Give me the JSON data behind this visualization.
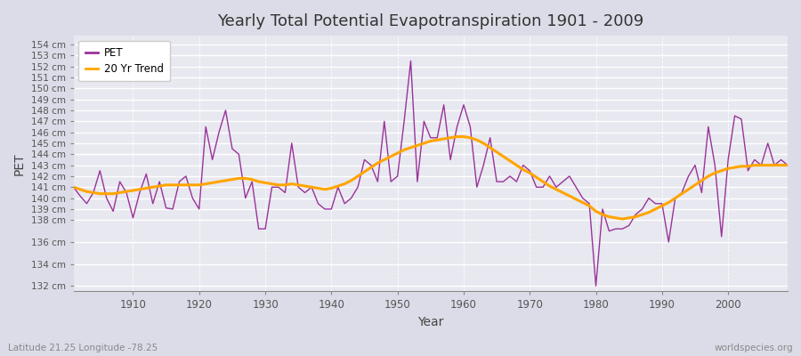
{
  "title": "Yearly Total Potential Evapotranspiration 1901 - 2009",
  "xlabel": "Year",
  "ylabel": "PET",
  "bottom_left_label": "Latitude 21.25 Longitude -78.25",
  "bottom_right_label": "worldspecies.org",
  "pet_color": "#993399",
  "trend_color": "#FFA500",
  "background_color": "#DCDCE8",
  "plot_bg_color": "#E8E8F0",
  "ylim": [
    131.5,
    154.8
  ],
  "xlim": [
    1901,
    2009
  ],
  "yticks": [
    132,
    134,
    136,
    138,
    139,
    140,
    141,
    142,
    143,
    144,
    145,
    146,
    147,
    148,
    149,
    150,
    151,
    152,
    153,
    154
  ],
  "xticks": [
    1910,
    1920,
    1930,
    1940,
    1950,
    1960,
    1970,
    1980,
    1990,
    2000
  ],
  "years": [
    1901,
    1902,
    1903,
    1904,
    1905,
    1906,
    1907,
    1908,
    1909,
    1910,
    1911,
    1912,
    1913,
    1914,
    1915,
    1916,
    1917,
    1918,
    1919,
    1920,
    1921,
    1922,
    1923,
    1924,
    1925,
    1926,
    1927,
    1928,
    1929,
    1930,
    1931,
    1932,
    1933,
    1934,
    1935,
    1936,
    1937,
    1938,
    1939,
    1940,
    1941,
    1942,
    1943,
    1944,
    1945,
    1946,
    1947,
    1948,
    1949,
    1950,
    1951,
    1952,
    1953,
    1954,
    1955,
    1956,
    1957,
    1958,
    1959,
    1960,
    1961,
    1962,
    1963,
    1964,
    1965,
    1966,
    1967,
    1968,
    1969,
    1970,
    1971,
    1972,
    1973,
    1974,
    1975,
    1976,
    1977,
    1978,
    1979,
    1980,
    1981,
    1982,
    1983,
    1984,
    1985,
    1986,
    1987,
    1988,
    1989,
    1990,
    1991,
    1992,
    1993,
    1994,
    1995,
    1996,
    1997,
    1998,
    1999,
    2000,
    2001,
    2002,
    2003,
    2004,
    2005,
    2006,
    2007,
    2008,
    2009
  ],
  "pet_values": [
    141.0,
    140.2,
    139.5,
    140.5,
    142.5,
    140.0,
    138.8,
    141.5,
    140.5,
    138.2,
    140.5,
    142.2,
    139.5,
    141.5,
    139.1,
    139.0,
    141.5,
    142.0,
    140.0,
    139.0,
    146.5,
    143.5,
    146.0,
    148.0,
    144.5,
    144.0,
    140.0,
    141.5,
    137.2,
    137.2,
    141.0,
    141.0,
    140.5,
    145.0,
    141.0,
    140.5,
    141.0,
    139.5,
    139.0,
    139.0,
    141.0,
    139.5,
    140.0,
    141.0,
    143.5,
    143.0,
    141.5,
    147.0,
    141.5,
    142.0,
    147.0,
    152.5,
    141.5,
    147.0,
    145.5,
    145.5,
    148.5,
    143.5,
    146.5,
    148.5,
    146.5,
    141.0,
    143.0,
    145.5,
    141.5,
    141.5,
    142.0,
    141.5,
    143.0,
    142.5,
    141.0,
    141.0,
    142.0,
    141.0,
    141.5,
    142.0,
    141.0,
    140.0,
    139.5,
    132.0,
    139.0,
    137.0,
    137.2,
    137.2,
    137.5,
    138.5,
    139.0,
    140.0,
    139.5,
    139.5,
    136.0,
    140.0,
    140.5,
    142.0,
    143.0,
    140.5,
    146.5,
    143.0,
    136.5,
    143.5,
    147.5,
    147.2,
    142.5,
    143.5,
    143.0,
    145.0,
    143.0,
    143.5,
    143.0
  ],
  "trend_years": [
    1901,
    1902,
    1903,
    1904,
    1905,
    1906,
    1907,
    1908,
    1909,
    1910,
    1911,
    1912,
    1913,
    1914,
    1915,
    1916,
    1917,
    1918,
    1919,
    1920,
    1921,
    1922,
    1923,
    1924,
    1925,
    1926,
    1927,
    1928,
    1929,
    1930,
    1931,
    1932,
    1933,
    1934,
    1935,
    1936,
    1937,
    1938,
    1939,
    1940,
    1941,
    1942,
    1943,
    1944,
    1945,
    1946,
    1947,
    1948,
    1949,
    1950,
    1951,
    1952,
    1953,
    1954,
    1955,
    1956,
    1957,
    1958,
    1959,
    1960,
    1961,
    1962,
    1963,
    1964,
    1965,
    1966,
    1967,
    1968,
    1969,
    1970,
    1971,
    1972,
    1973,
    1974,
    1975,
    1976,
    1977,
    1978,
    1979,
    1980,
    1981,
    1982,
    1983,
    1984,
    1985,
    1986,
    1987,
    1988,
    1989,
    1990,
    1991,
    1992,
    1993,
    1994,
    1995,
    1996,
    1997,
    1998,
    1999,
    2000,
    2001,
    2002,
    2003,
    2004,
    2005,
    2006,
    2007,
    2008,
    2009
  ],
  "trend_values": [
    141.0,
    140.8,
    140.6,
    140.5,
    140.4,
    140.4,
    140.4,
    140.5,
    140.6,
    140.7,
    140.8,
    140.9,
    141.0,
    141.1,
    141.2,
    141.2,
    141.2,
    141.2,
    141.2,
    141.2,
    141.3,
    141.4,
    141.5,
    141.6,
    141.7,
    141.8,
    141.8,
    141.7,
    141.5,
    141.4,
    141.3,
    141.2,
    141.2,
    141.3,
    141.2,
    141.1,
    141.0,
    140.9,
    140.8,
    140.9,
    141.1,
    141.3,
    141.6,
    142.0,
    142.4,
    142.8,
    143.2,
    143.5,
    143.8,
    144.1,
    144.4,
    144.6,
    144.8,
    145.0,
    145.2,
    145.3,
    145.4,
    145.5,
    145.6,
    145.6,
    145.5,
    145.3,
    145.0,
    144.6,
    144.2,
    143.8,
    143.4,
    143.0,
    142.6,
    142.3,
    141.9,
    141.5,
    141.1,
    140.8,
    140.5,
    140.2,
    139.9,
    139.6,
    139.3,
    138.8,
    138.5,
    138.3,
    138.2,
    138.1,
    138.2,
    138.3,
    138.5,
    138.7,
    139.0,
    139.3,
    139.6,
    140.0,
    140.4,
    140.8,
    141.2,
    141.6,
    142.0,
    142.3,
    142.5,
    142.7,
    142.8,
    142.9,
    142.9,
    143.0,
    143.0,
    143.0,
    143.0,
    143.0,
    143.0
  ]
}
